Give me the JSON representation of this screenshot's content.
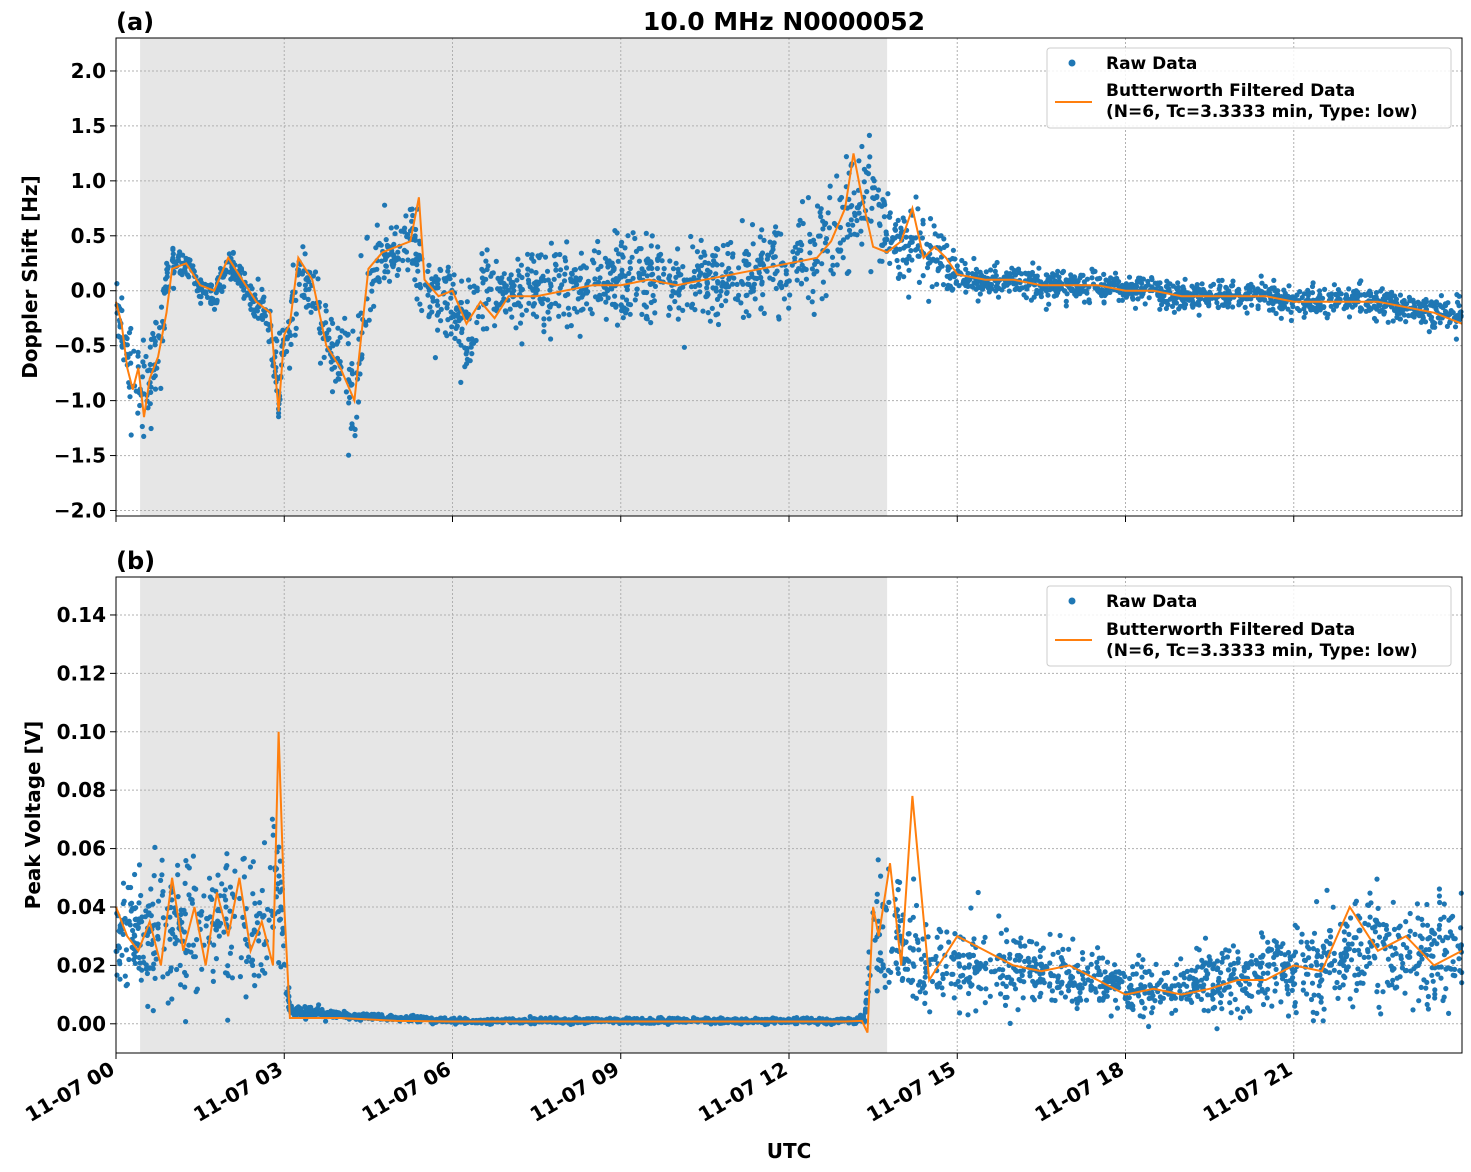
{
  "figure": {
    "xlabel": "UTC",
    "x_tick_labels": [
      "11-07 00",
      "11-07 03",
      "11-07 06",
      "11-07 09",
      "11-07 12",
      "11-07 15",
      "11-07 18",
      "11-07 21"
    ],
    "shaded_region_label": ""
  },
  "colors": {
    "raw": "#1f77b4",
    "filtered": "#ff7f0e",
    "shade": "#e6e6e6",
    "grid": "#b0b0b0"
  },
  "legend": {
    "raw_label": "Raw Data",
    "filtered_label_line1": "Butterworth Filtered Data",
    "filtered_label_line2": "(N=6, Tc=3.3333 min, Type: low)"
  },
  "chart_data": [
    {
      "type": "scatter",
      "panel_label": "(a)",
      "title": "10.0 MHz N0000052",
      "xlabel": "",
      "ylabel": "Doppler Shift [Hz]",
      "xlim_hours": [
        0,
        24
      ],
      "ylim": [
        -2.05,
        2.3
      ],
      "yticks": [
        -2.0,
        -1.5,
        -1.0,
        -0.5,
        0.0,
        0.5,
        1.0,
        1.5,
        2.0
      ],
      "ytick_labels": [
        "−2.0",
        "−1.5",
        "−1.0",
        "−0.5",
        "0.0",
        "0.5",
        "1.0",
        "1.5",
        "2.0"
      ],
      "shaded_hours": [
        0.43,
        13.75
      ],
      "grid": true,
      "legend_position": "top-right",
      "series": [
        {
          "name": "Raw Data",
          "style": "dots",
          "x_hours": [
            0,
            0.25,
            0.5,
            0.75,
            0.9,
            1.0,
            1.25,
            1.5,
            1.75,
            2.0,
            2.25,
            2.5,
            2.75,
            2.9,
            3.0,
            3.1,
            3.25,
            3.5,
            3.75,
            4.0,
            4.25,
            4.5,
            4.75,
            5.0,
            5.25,
            5.5,
            5.75,
            6.0,
            6.25,
            6.5,
            7.0,
            7.5,
            8.0,
            8.5,
            9.0,
            9.5,
            10.0,
            10.5,
            11.0,
            11.5,
            12.0,
            12.5,
            13.0,
            13.25,
            13.5,
            13.75,
            14.0,
            14.25,
            14.5,
            14.75,
            15.0,
            15.5,
            16.0,
            16.5,
            17.0,
            17.5,
            18.0,
            18.5,
            19.0,
            19.5,
            20.0,
            20.5,
            21.0,
            21.5,
            22.0,
            22.5,
            23.0,
            23.5,
            24.0
          ],
          "center": [
            -0.15,
            -0.6,
            -0.9,
            -0.6,
            0.1,
            0.25,
            0.25,
            0.0,
            -0.05,
            0.25,
            0.1,
            -0.15,
            -0.3,
            -1.0,
            -0.3,
            -0.4,
            0.15,
            0.0,
            -0.5,
            -0.6,
            -0.9,
            0.1,
            0.3,
            0.4,
            0.5,
            -0.05,
            -0.05,
            -0.2,
            -0.4,
            -0.1,
            -0.05,
            0.0,
            0.05,
            0.05,
            0.1,
            0.1,
            0.05,
            0.1,
            0.1,
            0.2,
            0.25,
            0.35,
            0.6,
            0.75,
            0.9,
            0.45,
            0.4,
            0.5,
            0.3,
            0.2,
            0.15,
            0.1,
            0.1,
            0.05,
            0.05,
            0.05,
            0.0,
            0.0,
            -0.05,
            -0.05,
            -0.05,
            -0.05,
            -0.1,
            -0.1,
            -0.1,
            -0.1,
            -0.15,
            -0.2,
            -0.25
          ],
          "spread": [
            0.15,
            0.35,
            0.45,
            0.35,
            0.15,
            0.15,
            0.12,
            0.12,
            0.12,
            0.12,
            0.12,
            0.15,
            0.25,
            0.4,
            0.35,
            0.4,
            0.3,
            0.3,
            0.4,
            0.5,
            0.5,
            0.35,
            0.3,
            0.35,
            0.4,
            0.3,
            0.3,
            0.35,
            0.4,
            0.35,
            0.35,
            0.35,
            0.35,
            0.35,
            0.35,
            0.35,
            0.35,
            0.35,
            0.35,
            0.35,
            0.35,
            0.4,
            0.45,
            0.5,
            0.55,
            0.25,
            0.3,
            0.35,
            0.25,
            0.2,
            0.15,
            0.12,
            0.12,
            0.12,
            0.12,
            0.12,
            0.12,
            0.12,
            0.12,
            0.12,
            0.12,
            0.12,
            0.12,
            0.12,
            0.12,
            0.12,
            0.12,
            0.15,
            0.18
          ]
        },
        {
          "name": "Butterworth Filtered Data",
          "style": "line",
          "x_hours": [
            0,
            0.1,
            0.2,
            0.3,
            0.4,
            0.5,
            0.6,
            0.75,
            0.9,
            1.0,
            1.25,
            1.5,
            1.75,
            2.0,
            2.25,
            2.5,
            2.75,
            2.9,
            3.0,
            3.1,
            3.25,
            3.5,
            3.75,
            4.0,
            4.25,
            4.5,
            4.75,
            5.0,
            5.25,
            5.4,
            5.5,
            5.75,
            6.0,
            6.25,
            6.5,
            6.75,
            7.0,
            7.5,
            8.0,
            8.5,
            9.0,
            9.5,
            10.0,
            10.5,
            11.0,
            11.5,
            12.0,
            12.5,
            12.75,
            13.0,
            13.15,
            13.3,
            13.5,
            13.75,
            14.0,
            14.2,
            14.4,
            14.6,
            14.8,
            15.0,
            15.5,
            16.0,
            16.5,
            17.0,
            17.5,
            18.0,
            18.5,
            19.0,
            19.5,
            20.0,
            20.5,
            21.0,
            21.5,
            22.0,
            22.5,
            23.0,
            23.5,
            24.0
          ],
          "values": [
            -0.1,
            -0.3,
            -0.7,
            -0.9,
            -0.7,
            -1.15,
            -0.8,
            -0.6,
            -0.2,
            0.2,
            0.25,
            0.05,
            0.0,
            0.3,
            0.1,
            -0.1,
            -0.2,
            -1.1,
            -0.4,
            -0.3,
            0.3,
            0.1,
            -0.5,
            -0.7,
            -1.0,
            0.2,
            0.35,
            0.4,
            0.45,
            0.85,
            0.1,
            -0.05,
            0.0,
            -0.3,
            -0.1,
            -0.25,
            -0.05,
            -0.05,
            0.0,
            0.05,
            0.05,
            0.1,
            0.05,
            0.1,
            0.15,
            0.2,
            0.25,
            0.3,
            0.45,
            0.75,
            1.25,
            0.85,
            0.4,
            0.35,
            0.45,
            0.75,
            0.3,
            0.4,
            0.3,
            0.15,
            0.1,
            0.1,
            0.05,
            0.05,
            0.05,
            0.0,
            0.0,
            -0.05,
            -0.05,
            -0.05,
            -0.05,
            -0.1,
            -0.1,
            -0.1,
            -0.1,
            -0.15,
            -0.2,
            -0.3
          ]
        }
      ]
    },
    {
      "type": "scatter",
      "panel_label": "(b)",
      "title": "",
      "xlabel": "UTC",
      "ylabel": "Peak Voltage [V]",
      "xlim_hours": [
        0,
        24
      ],
      "ylim": [
        -0.01,
        0.153
      ],
      "yticks": [
        0.0,
        0.02,
        0.04,
        0.06,
        0.08,
        0.1,
        0.12,
        0.14
      ],
      "ytick_labels": [
        "0.00",
        "0.02",
        "0.04",
        "0.06",
        "0.08",
        "0.10",
        "0.12",
        "0.14"
      ],
      "shaded_hours": [
        0.43,
        13.75
      ],
      "grid": true,
      "legend_position": "top-right",
      "series": [
        {
          "name": "Raw Data",
          "style": "dots",
          "x_hours": [
            0,
            0.5,
            1.0,
            1.5,
            2.0,
            2.5,
            2.9,
            3.05,
            3.15,
            3.5,
            4.0,
            5.0,
            6.0,
            8.0,
            10.0,
            12.0,
            13.2,
            13.35,
            13.5,
            13.8,
            14.0,
            14.5,
            15.0,
            15.5,
            16.0,
            16.5,
            17.0,
            17.5,
            18.0,
            18.5,
            19.0,
            19.5,
            20.0,
            20.5,
            21.0,
            21.5,
            22.0,
            22.5,
            23.0,
            23.5,
            24.0
          ],
          "center": [
            0.03,
            0.03,
            0.035,
            0.03,
            0.035,
            0.03,
            0.05,
            0.01,
            0.004,
            0.004,
            0.003,
            0.002,
            0.001,
            0.001,
            0.001,
            0.001,
            0.001,
            0.002,
            0.03,
            0.03,
            0.025,
            0.02,
            0.02,
            0.02,
            0.02,
            0.018,
            0.015,
            0.015,
            0.012,
            0.012,
            0.012,
            0.015,
            0.015,
            0.018,
            0.02,
            0.022,
            0.025,
            0.025,
            0.025,
            0.025,
            0.025
          ],
          "spread": [
            0.02,
            0.02,
            0.025,
            0.02,
            0.025,
            0.02,
            0.03,
            0.005,
            0.002,
            0.002,
            0.001,
            0.001,
            0.0008,
            0.0008,
            0.0008,
            0.0008,
            0.0008,
            0.002,
            0.02,
            0.02,
            0.015,
            0.012,
            0.012,
            0.012,
            0.012,
            0.01,
            0.01,
            0.009,
            0.008,
            0.008,
            0.008,
            0.01,
            0.01,
            0.012,
            0.014,
            0.015,
            0.017,
            0.017,
            0.017,
            0.017,
            0.017
          ]
        },
        {
          "name": "Butterworth Filtered Data",
          "style": "line",
          "x_hours": [
            0,
            0.2,
            0.4,
            0.6,
            0.8,
            1.0,
            1.2,
            1.4,
            1.6,
            1.8,
            2.0,
            2.2,
            2.4,
            2.6,
            2.8,
            2.9,
            3.0,
            3.1,
            3.2,
            3.5,
            4.0,
            5.0,
            6.0,
            7.0,
            8.0,
            9.0,
            10.0,
            11.0,
            12.0,
            13.0,
            13.3,
            13.4,
            13.5,
            13.6,
            13.8,
            14.0,
            14.2,
            14.5,
            15.0,
            15.5,
            16.0,
            16.5,
            17.0,
            17.5,
            18.0,
            18.5,
            19.0,
            19.5,
            20.0,
            20.5,
            21.0,
            21.5,
            22.0,
            22.5,
            23.0,
            23.5,
            24.0
          ],
          "values": [
            0.04,
            0.03,
            0.025,
            0.035,
            0.02,
            0.05,
            0.025,
            0.04,
            0.02,
            0.045,
            0.03,
            0.05,
            0.025,
            0.035,
            0.02,
            0.1,
            0.04,
            0.002,
            0.002,
            0.002,
            0.002,
            0.001,
            0.0008,
            0.0008,
            0.0008,
            0.0008,
            0.0008,
            0.0008,
            0.0008,
            0.0008,
            0.001,
            -0.003,
            0.04,
            0.03,
            0.055,
            0.02,
            0.078,
            0.015,
            0.03,
            0.025,
            0.02,
            0.018,
            0.02,
            0.015,
            0.01,
            0.012,
            0.01,
            0.012,
            0.015,
            0.015,
            0.02,
            0.018,
            0.04,
            0.025,
            0.03,
            0.02,
            0.025
          ]
        }
      ]
    }
  ]
}
